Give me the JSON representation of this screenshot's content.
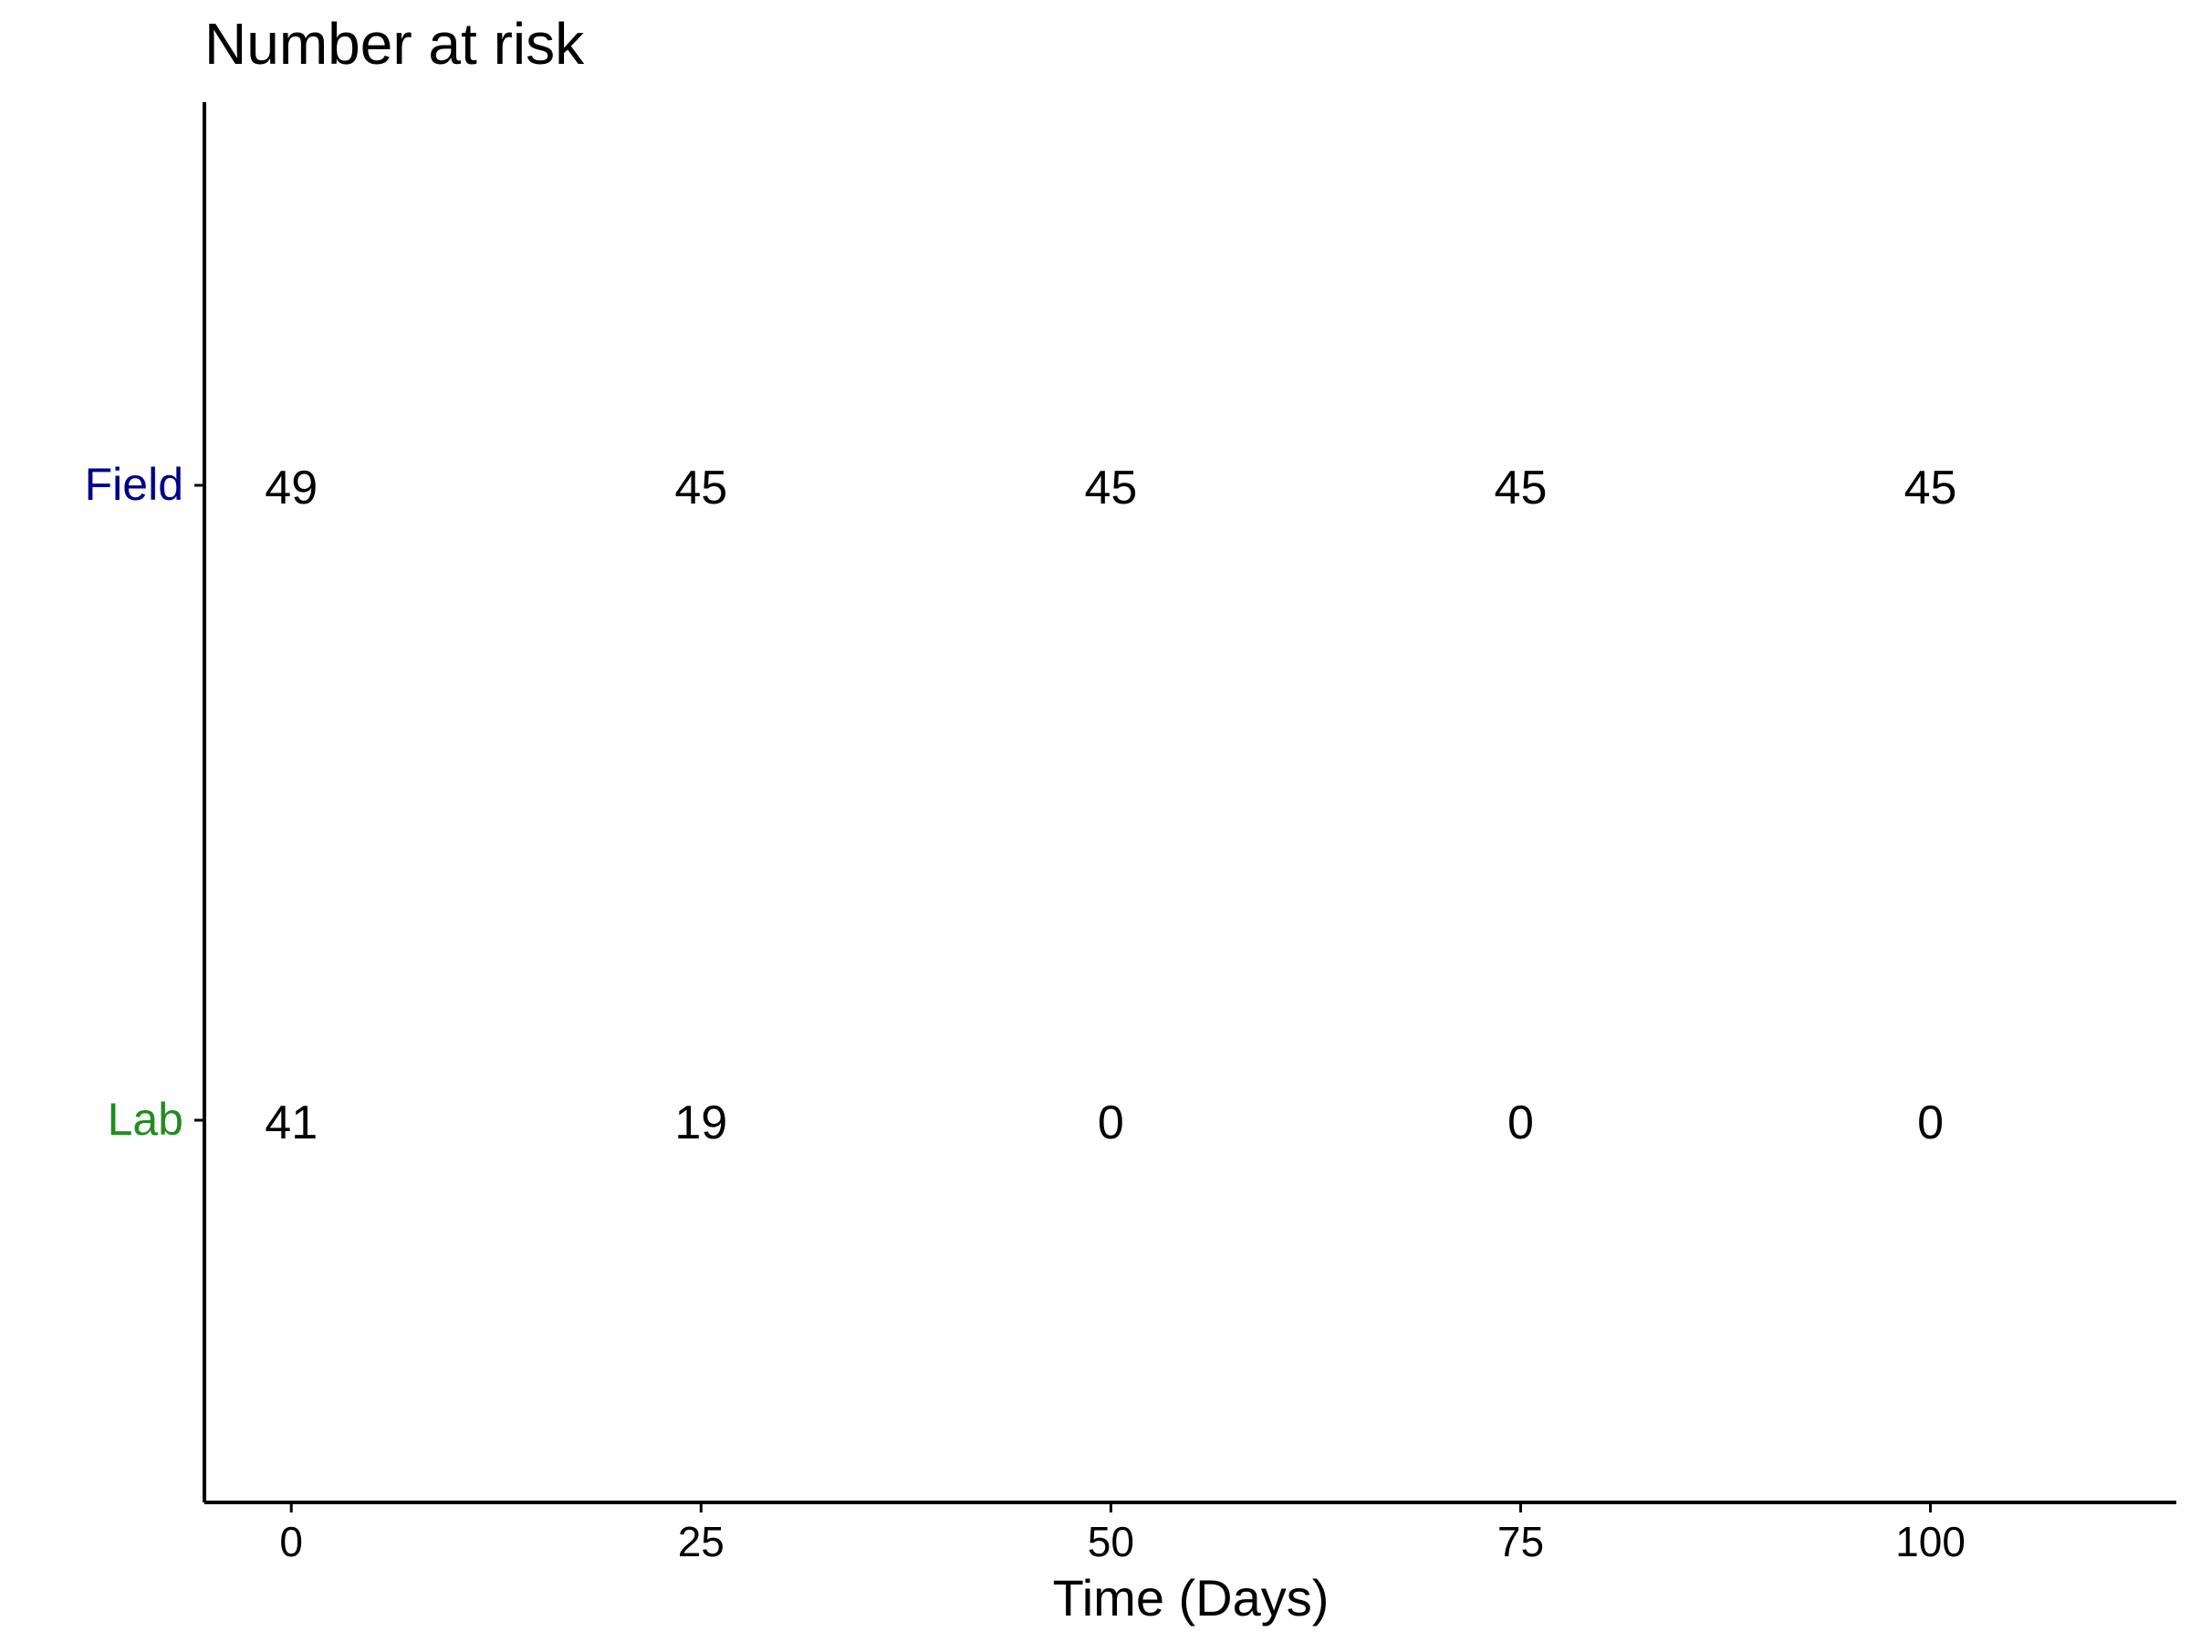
{
  "chart_data": {
    "type": "table",
    "title": "Number at risk",
    "xlabel": "Time (Days)",
    "ylabel": "",
    "x_ticks": [
      0,
      25,
      50,
      75,
      100
    ],
    "xlim": [
      -5.3,
      115
    ],
    "grid": false,
    "legend": "none",
    "series": [
      {
        "name": "Field",
        "color": "#00008B",
        "values": [
          49,
          45,
          45,
          45,
          45
        ]
      },
      {
        "name": "Lab",
        "color": "#228B22",
        "values": [
          41,
          19,
          0,
          0,
          0
        ]
      }
    ]
  }
}
